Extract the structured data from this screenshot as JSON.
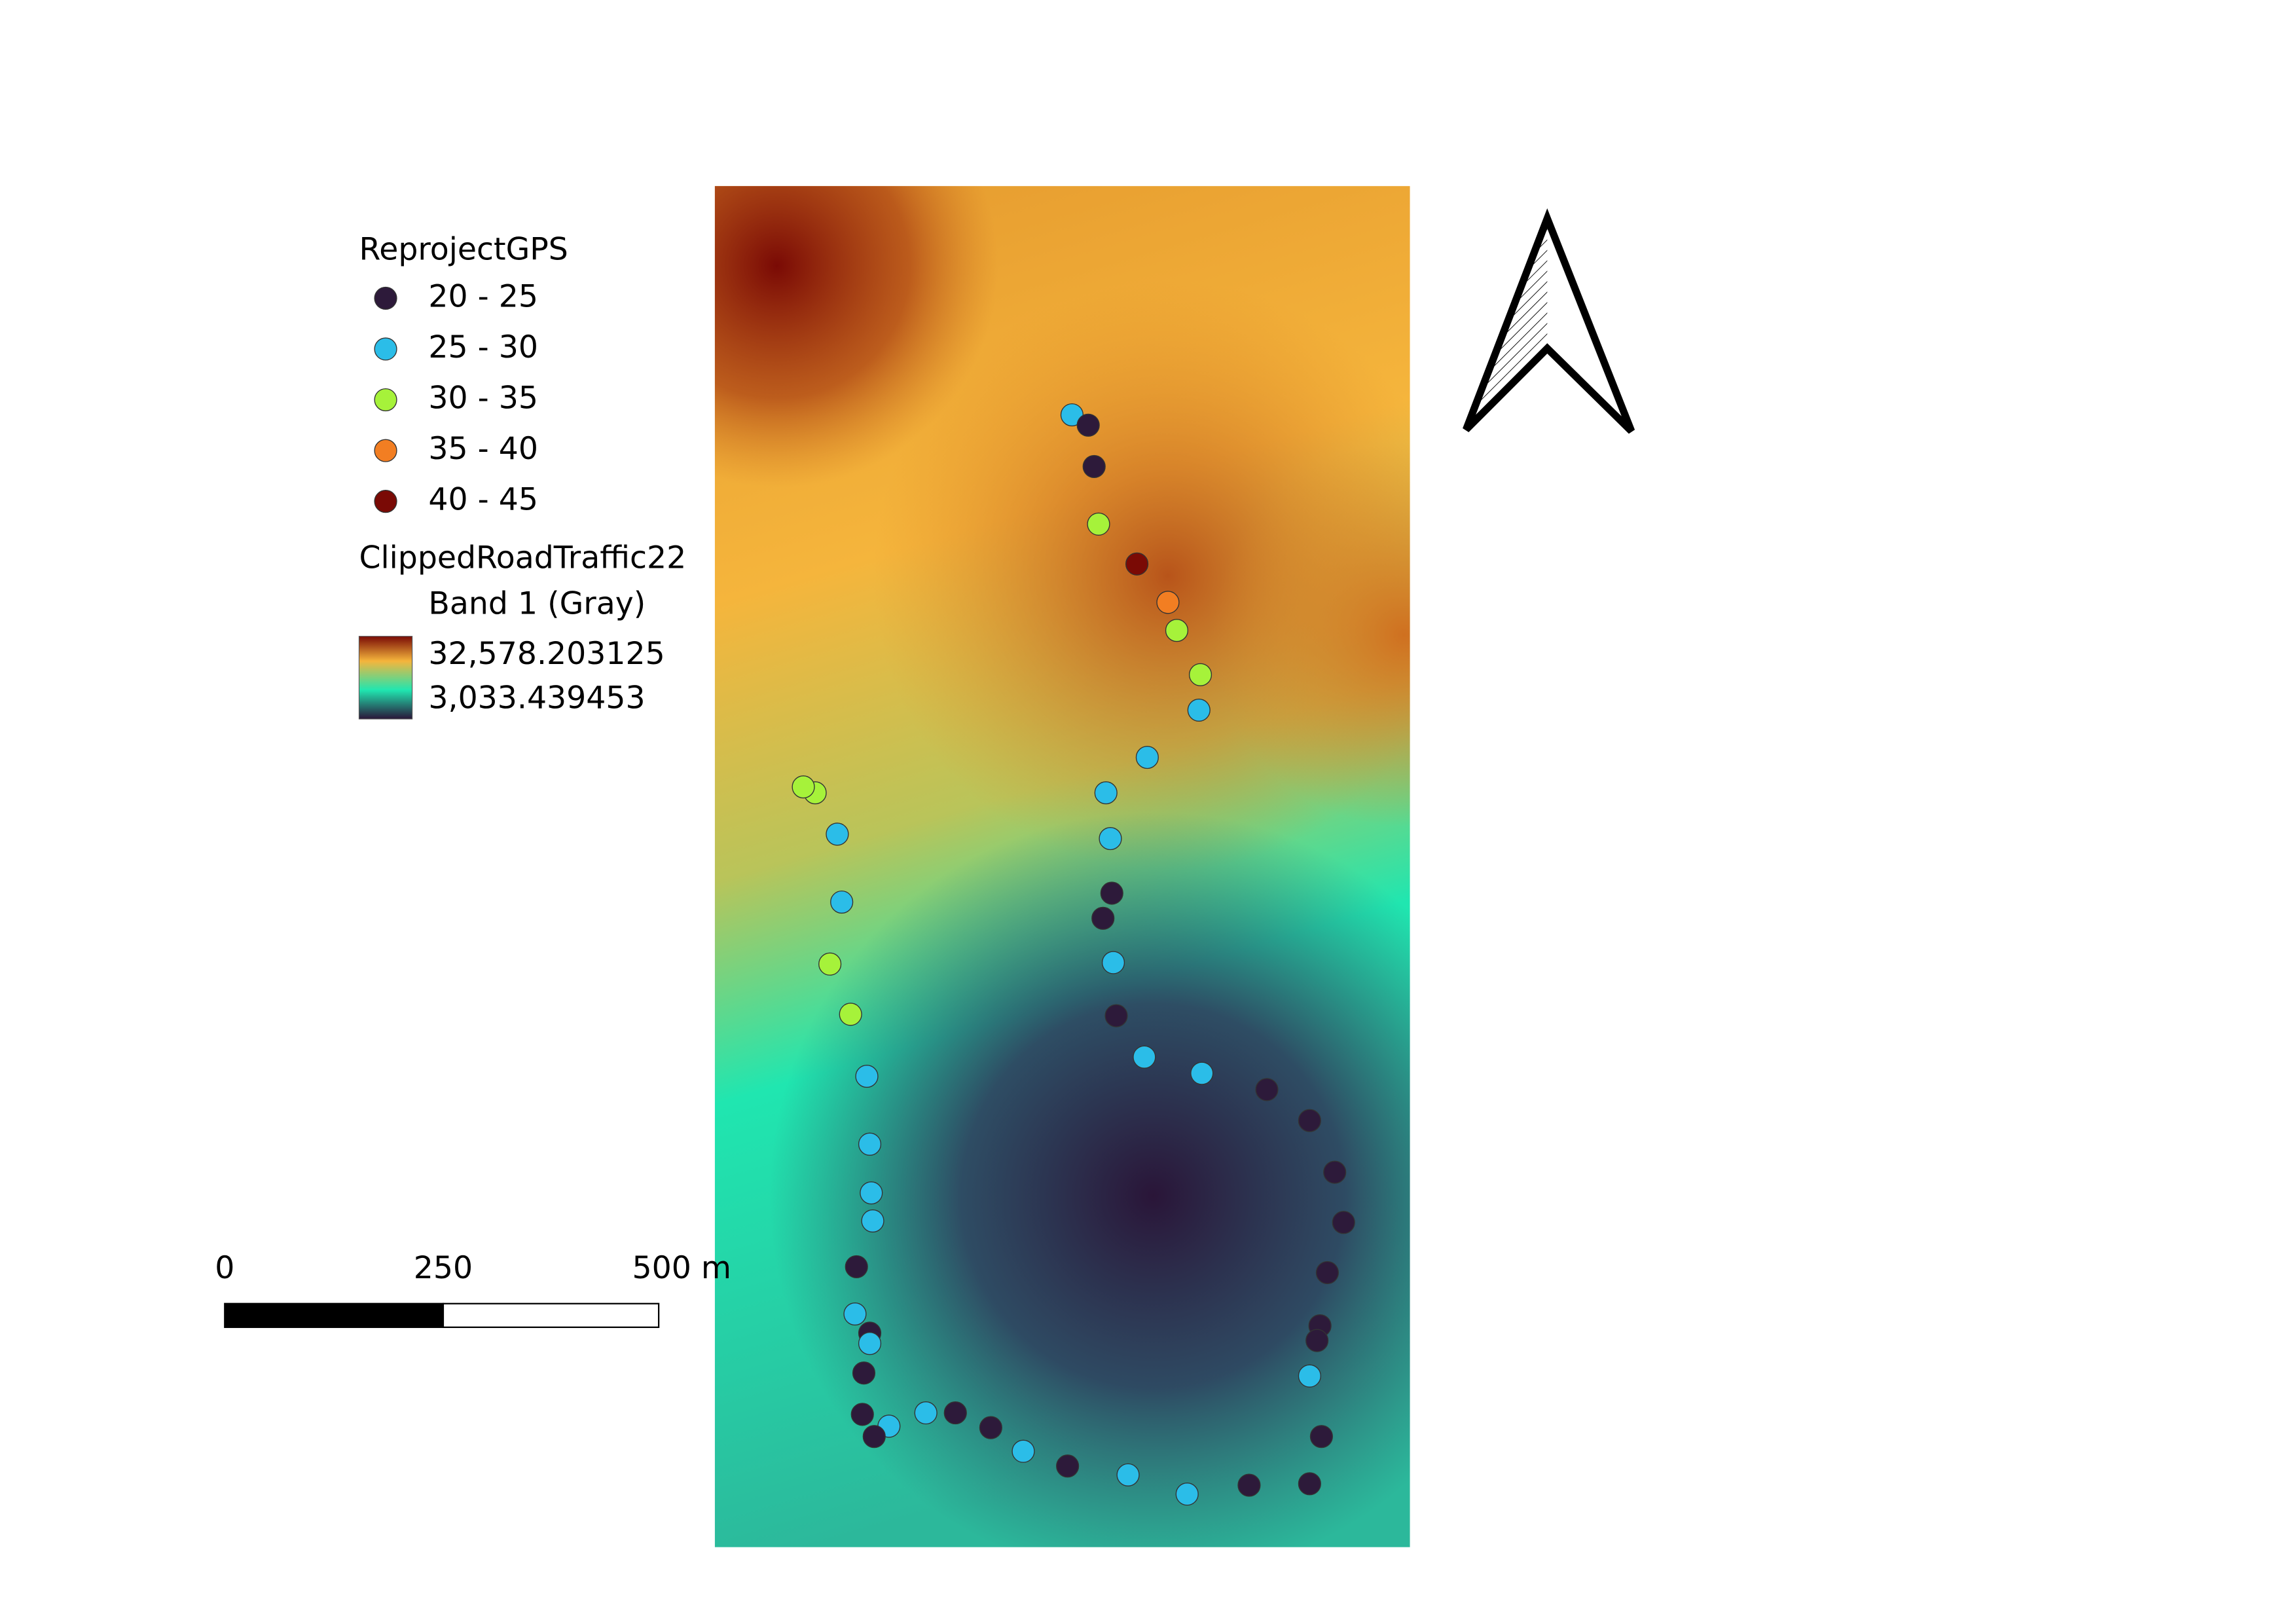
{
  "legend": {
    "gps": {
      "title": "ReprojectGPS",
      "classes": [
        {
          "label": "20 - 25",
          "color": "#2d1a3a"
        },
        {
          "label": "25 - 30",
          "color": "#2bbde8"
        },
        {
          "label": "30 - 35",
          "color": "#a6f23a"
        },
        {
          "label": "35 - 40",
          "color": "#f27e22"
        },
        {
          "label": "40 - 45",
          "color": "#7a0a05"
        }
      ]
    },
    "raster": {
      "title": "ClippedRoadTraffic22",
      "band": "Band 1 (Gray)",
      "max": "32,578.203125",
      "min": "3,033.439453"
    }
  },
  "scale_bar": {
    "labels": [
      "0",
      "250",
      "500 m"
    ]
  }
}
